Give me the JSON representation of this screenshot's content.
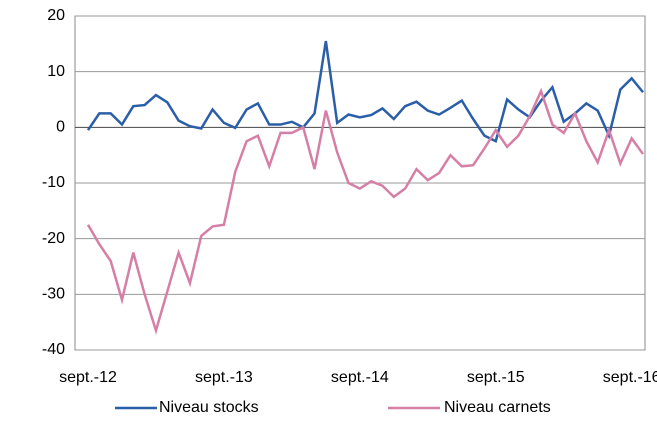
{
  "chart_data": {
    "type": "line",
    "categories": [
      "sept.-12",
      null,
      null,
      null,
      null,
      null,
      null,
      null,
      null,
      null,
      null,
      null,
      "sept.-13",
      null,
      null,
      null,
      null,
      null,
      null,
      null,
      null,
      null,
      null,
      null,
      "sept.-14",
      null,
      null,
      null,
      null,
      null,
      null,
      null,
      null,
      null,
      null,
      null,
      "sept.-15",
      null,
      null,
      null,
      null,
      null,
      null,
      null,
      null,
      null,
      null,
      null,
      "sept.-16",
      null
    ],
    "series": [
      {
        "name": "Niveau stocks",
        "color": "#2a5ea8",
        "values": [
          -0.5,
          2.5,
          2.5,
          0.5,
          3.8,
          4,
          5.8,
          4.5,
          1.2,
          0.2,
          -0.2,
          3.2,
          0.8,
          -0.1,
          3.2,
          4.3,
          0.5,
          0.5,
          1,
          0,
          2.5,
          15.5,
          0.8,
          2.3,
          1.8,
          2.2,
          3.4,
          1.5,
          3.8,
          4.6,
          3,
          2.3,
          3.5,
          4.8,
          1.5,
          -1.5,
          -2.5,
          5,
          3.2,
          1.8,
          4.8,
          7.2,
          1,
          2.5,
          4.3,
          3,
          -1.5,
          6.8,
          8.8,
          6.3
        ]
      },
      {
        "name": "Niveau carnets",
        "color": "#d67fa6",
        "values": [
          -17.5,
          -21,
          -24,
          -31,
          -22.5,
          -30,
          -36.5,
          -29.5,
          -22.5,
          -28,
          -19.5,
          -17.8,
          -17.5,
          -8,
          -2.5,
          -1.5,
          -7,
          -1,
          -1,
          0,
          -7.5,
          3,
          -4.5,
          -10,
          -11,
          -9.7,
          -10.5,
          -12.5,
          -11,
          -7.5,
          -9.5,
          -8.2,
          -5,
          -7,
          -6.8,
          -3.8,
          -0.5,
          -3.5,
          -1.5,
          2,
          6.5,
          0.5,
          -1,
          2.5,
          -2.5,
          -6.3,
          -0.5,
          -6.5,
          -2,
          -4.8
        ]
      }
    ],
    "ylim": [
      -40,
      20
    ],
    "yticks": [
      -40,
      -30,
      -20,
      -10,
      0,
      10,
      20
    ],
    "grid": true
  }
}
